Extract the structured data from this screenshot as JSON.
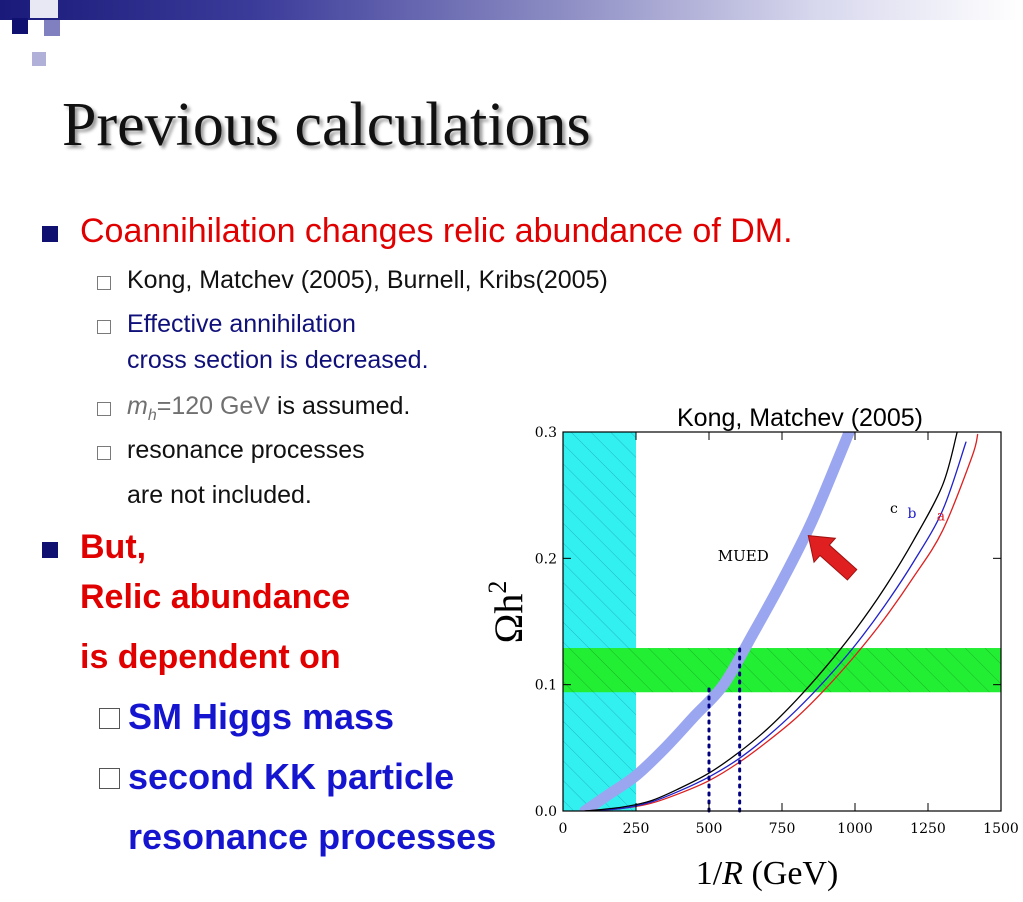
{
  "slide": {
    "title": "Previous calculations",
    "bullets": {
      "b1": "Coannihilation changes relic abundance of DM.",
      "s1": "Kong, Matchev (2005), Burnell, Kribs(2005)",
      "s2_line1": "Effective annihilation",
      "s2_line2": "cross section is decreased.",
      "s3_m": "m",
      "s3_sub": "h",
      "s3_val": "=120 GeV",
      "s3_rest": " is assumed.",
      "s4_line1": "resonance processes",
      "s4_line2": "are not included.",
      "b2_line1": "But,",
      "b2_line2": "Relic abundance",
      "b2_line3": "is dependent on",
      "s5": "SM Higgs mass",
      "s6": "second KK particle",
      "s6_cont": "resonance processes"
    }
  },
  "colors": {
    "title_band_dark": "#1a1a7a",
    "bullet_red": "#e00000",
    "bullet_blue": "#1515d0",
    "mued_curve": "#9aa6f0",
    "wmap_band": "#22ee33",
    "excluded_region": "#33f0f0",
    "curve_a": "#dd2020",
    "curve_b": "#2020cc",
    "curve_c": "#000000",
    "arrow": "#e02020"
  },
  "chart_data": {
    "type": "line",
    "title": "Kong, Matchev (2005)",
    "xlabel_num": "1/",
    "xlabel_var": "R",
    "xlabel_unit": " (GeV)",
    "ylabel_main": "Ωh",
    "ylabel_sup": "2",
    "xlim": [
      0,
      1500
    ],
    "ylim": [
      0,
      0.3
    ],
    "xticks": [
      0,
      250,
      500,
      750,
      1000,
      1250,
      1500
    ],
    "xtick_labels": [
      "0",
      "250",
      "500",
      "750",
      "1000",
      "1250",
      "1500"
    ],
    "yticks": [
      0,
      0.1,
      0.2,
      0.3
    ],
    "ytick_labels": [
      "0.0",
      "0.1",
      "0.2",
      "0.3"
    ],
    "excluded_region_x": [
      0,
      250
    ],
    "wmap_band_y": [
      0.094,
      0.129
    ],
    "dotted_verticals": [
      {
        "x": 500,
        "y_top": 0.1
      },
      {
        "x": 605,
        "y_top": 0.129
      }
    ],
    "annotation_mued": "MUED",
    "arrow": {
      "from": [
        990,
        0.187
      ],
      "to": [
        840,
        0.218
      ]
    },
    "series": [
      {
        "name": "MUED",
        "x": [
          75,
          150,
          250,
          350,
          450,
          550,
          650,
          750,
          850,
          950,
          980
        ],
        "y": [
          0,
          0.012,
          0.028,
          0.05,
          0.075,
          0.1,
          0.14,
          0.182,
          0.228,
          0.283,
          0.3
        ]
      },
      {
        "name": "a",
        "x": [
          75,
          200,
          300,
          400,
          500,
          600,
          700,
          800,
          900,
          1000,
          1100,
          1200,
          1300,
          1400,
          1420
        ],
        "y": [
          0,
          0.002,
          0.006,
          0.014,
          0.024,
          0.038,
          0.055,
          0.074,
          0.097,
          0.123,
          0.152,
          0.185,
          0.222,
          0.28,
          0.298
        ]
      },
      {
        "name": "b",
        "x": [
          75,
          200,
          300,
          400,
          500,
          600,
          700,
          800,
          900,
          1000,
          1100,
          1200,
          1300,
          1380
        ],
        "y": [
          0,
          0.002,
          0.007,
          0.016,
          0.027,
          0.041,
          0.059,
          0.08,
          0.104,
          0.131,
          0.162,
          0.197,
          0.238,
          0.292
        ]
      },
      {
        "name": "c",
        "x": [
          75,
          200,
          300,
          400,
          500,
          600,
          700,
          800,
          900,
          1000,
          1100,
          1200,
          1300,
          1350
        ],
        "y": [
          0,
          0.003,
          0.008,
          0.018,
          0.03,
          0.046,
          0.065,
          0.088,
          0.114,
          0.143,
          0.176,
          0.214,
          0.258,
          0.3
        ]
      }
    ]
  }
}
